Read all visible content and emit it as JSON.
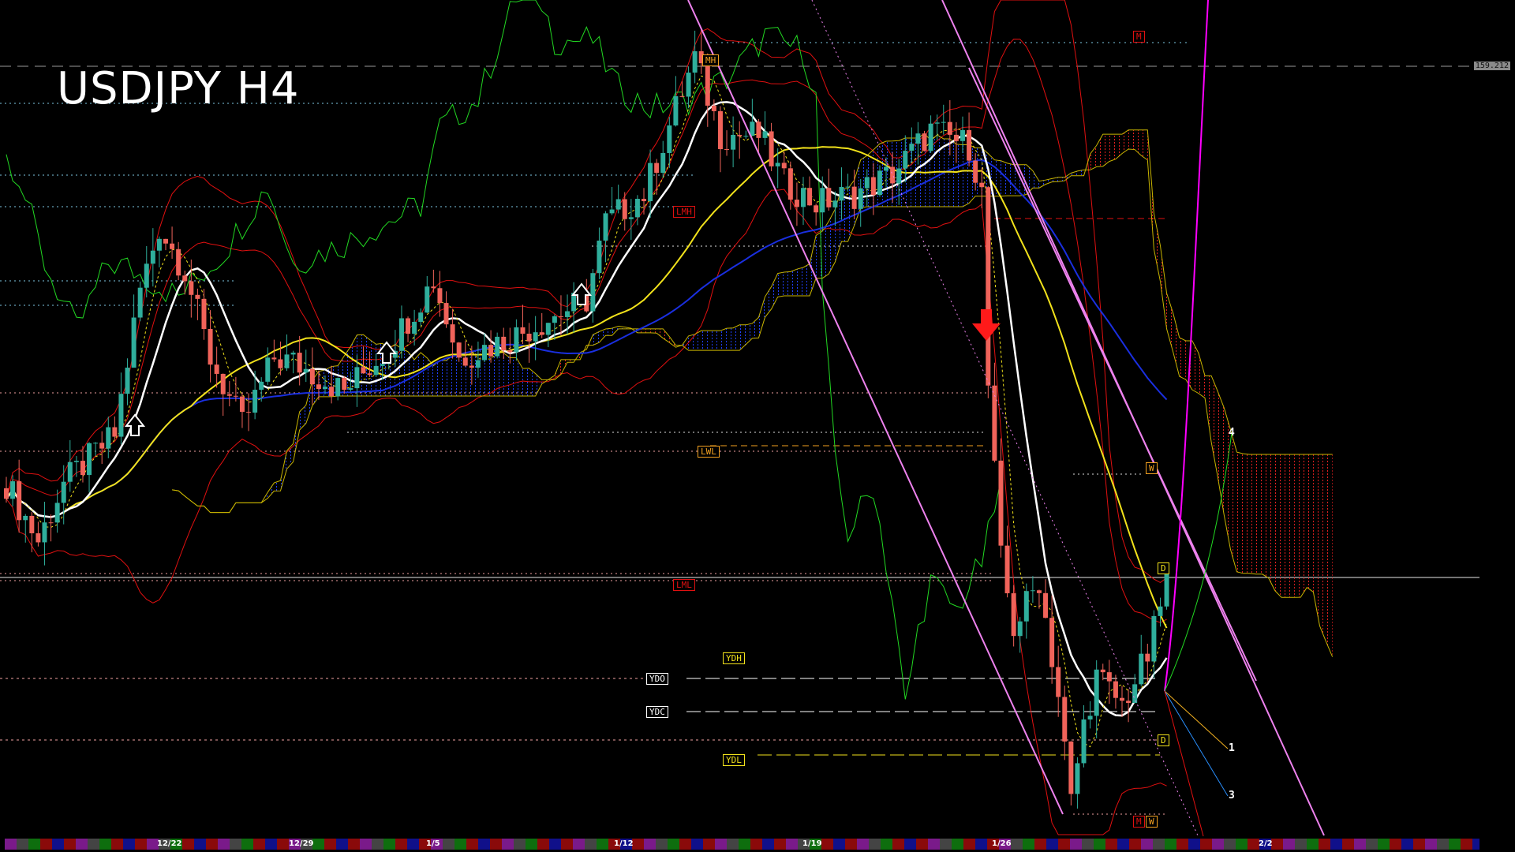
{
  "title": "USDJPY H4",
  "price_label": "159.212",
  "levels": {
    "mh": "MH",
    "lmh": "LMH",
    "lwl": "LWL",
    "lml": "LML",
    "ydh": "YDH",
    "ydo": "YDO",
    "ydc": "YDC",
    "ydl": "YDL",
    "m_top": "M",
    "w_mid": "W",
    "d_top": "D",
    "d_bot": "D",
    "m_bot": "M",
    "w_bot": "W"
  },
  "projections": {
    "p1": "1",
    "p3": "3",
    "p4": "4"
  },
  "colors": {
    "bull": "#2fae9c",
    "bear": "#f0635a",
    "ma_fast": "#ffffff",
    "ma_mid": "#f2e21b",
    "ma_slow": "#1a2fe0",
    "bands": "#e01010",
    "lagging": "#22d822",
    "trendline": "#ee82ee",
    "cloud_bear": "#e02020",
    "cloud_bull": "#2040ff"
  },
  "chart_data": {
    "type": "candlestick",
    "symbol": "USDJPY",
    "timeframe": "H4",
    "x_tick_labels": [
      "12/22",
      "12/29",
      "1/5",
      "1/12",
      "1/19",
      "1/26",
      "2/2"
    ],
    "reference_price": 159.212,
    "close_waypoints": [
      {
        "bar": 0,
        "price": 155.25
      },
      {
        "bar": 5,
        "price": 154.7
      },
      {
        "bar": 9,
        "price": 155.25
      },
      {
        "bar": 17,
        "price": 155.71
      },
      {
        "bar": 21,
        "price": 157.09
      },
      {
        "bar": 24,
        "price": 157.68
      },
      {
        "bar": 28,
        "price": 157.27
      },
      {
        "bar": 32,
        "price": 156.44
      },
      {
        "bar": 37,
        "price": 155.8
      },
      {
        "bar": 42,
        "price": 156.44
      },
      {
        "bar": 45,
        "price": 156.4
      },
      {
        "bar": 53,
        "price": 156.12
      },
      {
        "bar": 60,
        "price": 156.54
      },
      {
        "bar": 67,
        "price": 157.18
      },
      {
        "bar": 71,
        "price": 156.44
      },
      {
        "bar": 79,
        "price": 156.63
      },
      {
        "bar": 85,
        "price": 156.81
      },
      {
        "bar": 91,
        "price": 156.99
      },
      {
        "bar": 94,
        "price": 157.73
      },
      {
        "bar": 100,
        "price": 158.0
      },
      {
        "bar": 104,
        "price": 158.65
      },
      {
        "bar": 108,
        "price": 159.29
      },
      {
        "bar": 112,
        "price": 158.56
      },
      {
        "bar": 118,
        "price": 158.56
      },
      {
        "bar": 122,
        "price": 158.1
      },
      {
        "bar": 127,
        "price": 157.91
      },
      {
        "bar": 133,
        "price": 158.0
      },
      {
        "bar": 139,
        "price": 158.19
      },
      {
        "bar": 145,
        "price": 158.6
      },
      {
        "bar": 151,
        "price": 158.46
      },
      {
        "bar": 153,
        "price": 158.0
      },
      {
        "bar": 154,
        "price": 156.17
      },
      {
        "bar": 156,
        "price": 154.52
      },
      {
        "bar": 158,
        "price": 153.87
      },
      {
        "bar": 162,
        "price": 154.33
      },
      {
        "bar": 165,
        "price": 153.23
      },
      {
        "bar": 167,
        "price": 152.22
      },
      {
        "bar": 169,
        "price": 152.95
      },
      {
        "bar": 171,
        "price": 153.41
      },
      {
        "bar": 175,
        "price": 153.14
      },
      {
        "bar": 179,
        "price": 153.6
      },
      {
        "bar": 182,
        "price": 154.33
      }
    ]
  }
}
